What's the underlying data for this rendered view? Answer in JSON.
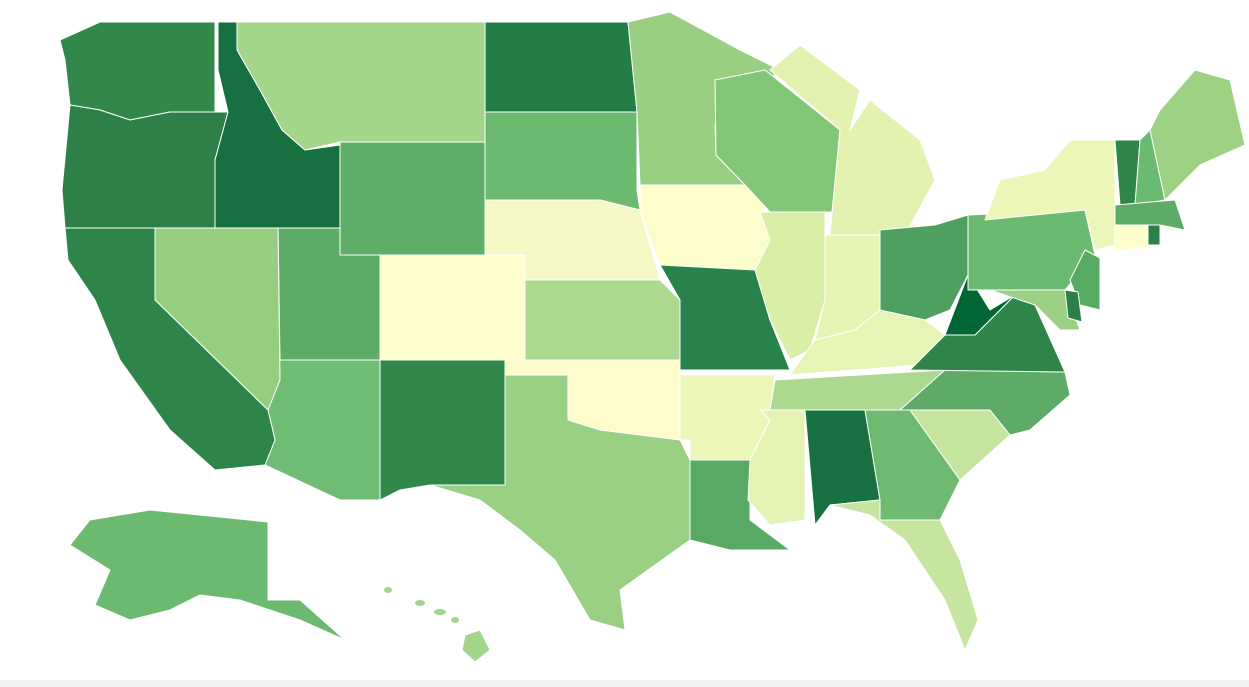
{
  "map": {
    "regions": [
      {
        "color": "#31884a"
      },
      {
        "color": "#2c8048"
      },
      {
        "color": "#167040"
      },
      {
        "color": "#a3d58a"
      },
      {
        "color": "#5fae67"
      },
      {
        "color": "#247d47"
      },
      {
        "color": "#6bba70"
      },
      {
        "color": "#f5f9c6"
      },
      {
        "color": "#feffcc"
      },
      {
        "color": "#acd890"
      },
      {
        "color": "#fefccb"
      },
      {
        "color": "#99d083"
      },
      {
        "color": "#2f884a"
      },
      {
        "color": "#6fbd72"
      },
      {
        "color": "#5cab66"
      },
      {
        "color": "#96ce80"
      },
      {
        "color": "#2e854a"
      },
      {
        "color": "#98cf82"
      },
      {
        "color": "#fcfdca"
      },
      {
        "color": "#27834b"
      },
      {
        "color": "#ecf6b9"
      },
      {
        "color": "#58a964"
      },
      {
        "color": "#83c677"
      },
      {
        "color": "#d9efa8"
      },
      {
        "color": "#e5f3b5"
      },
      {
        "color": "#e3f2b1"
      },
      {
        "color": "#4da05f"
      },
      {
        "color": "#e6f4b5"
      },
      {
        "color": "#acd88f"
      },
      {
        "color": "#e4f2b3"
      },
      {
        "color": "#167040"
      },
      {
        "color": "#6eba71"
      },
      {
        "color": "#c5e5a0"
      },
      {
        "color": "#c5e59f"
      },
      {
        "color": "#5dab66"
      },
      {
        "color": "#2f8449"
      },
      {
        "color": "#006634"
      },
      {
        "color": "#6abb6f"
      },
      {
        "color": "#ebf6b8"
      },
      {
        "color": "#57aa62"
      },
      {
        "color": "#9cd084"
      },
      {
        "color": "#2a8047"
      },
      {
        "color": "#2f864a"
      },
      {
        "color": "#6aba6f"
      },
      {
        "color": "#9dd284"
      },
      {
        "color": "#5dab66"
      },
      {
        "color": "#fefecc"
      },
      {
        "color": "#2a8047"
      },
      {
        "color": "#6bba70"
      },
      {
        "color": "#a3d58a"
      }
    ]
  }
}
